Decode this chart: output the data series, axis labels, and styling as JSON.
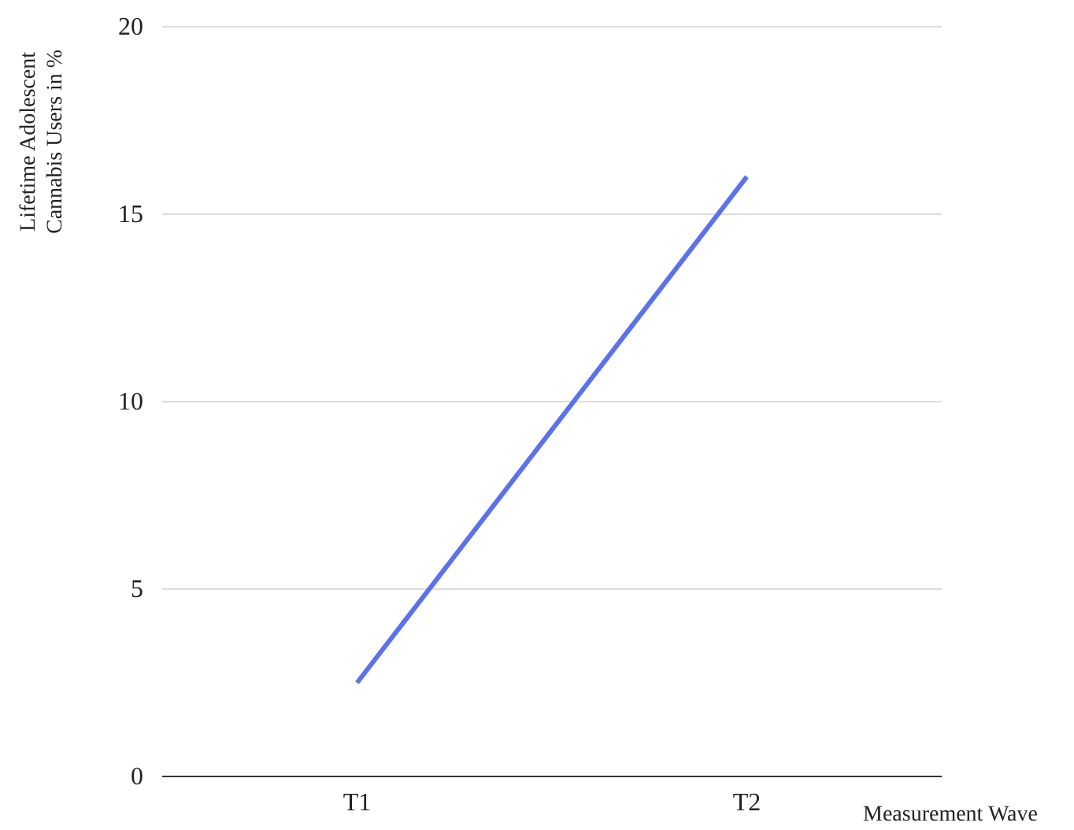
{
  "chart_data": {
    "type": "line",
    "xlabel": "Measurement Wave",
    "ylabel": "Lifetime Adolescent Cannabis Users  in %",
    "categories": [
      "T1",
      "T2"
    ],
    "series": [
      {
        "color": "#5b72ee",
        "values": [
          2.5,
          16
        ]
      }
    ],
    "ylim": [
      0,
      20
    ],
    "yticks": [
      0,
      5,
      10,
      15,
      20
    ],
    "grid": "y",
    "marker": "none",
    "line_style": "solid"
  }
}
